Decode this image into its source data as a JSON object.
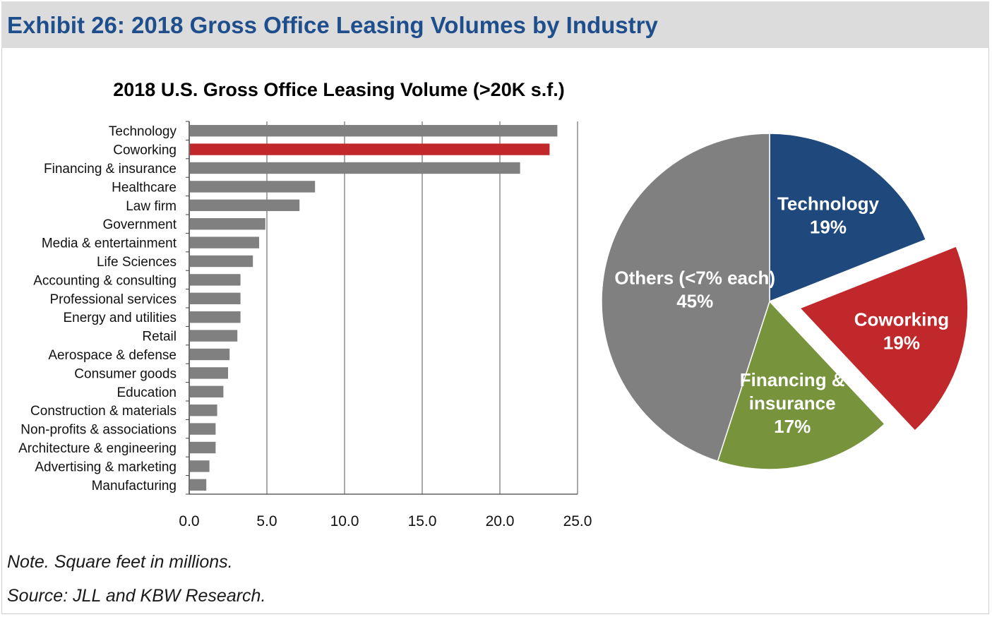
{
  "exhibit": {
    "title": "Exhibit 26: 2018 Gross Office Leasing Volumes by Industry",
    "note": "Note. Square feet in millions.",
    "source": "Source: JLL and KBW Research."
  },
  "colors": {
    "header_bg": "#dcdcdc",
    "header_text": "#1f4e8c",
    "bar_default": "#808080",
    "bar_highlight": "#c0282b",
    "pie_technology": "#1f497d",
    "pie_coworking": "#c0282b",
    "pie_financing": "#77933c",
    "pie_others": "#808080"
  },
  "chart_data": [
    {
      "type": "bar",
      "orientation": "horizontal",
      "title": "2018 U.S. Gross Office Leasing Volume (>20K s.f.)",
      "xlabel": "",
      "ylabel": "",
      "xlim": [
        0,
        25
      ],
      "ticks": [
        "0.0",
        "5.0",
        "10.0",
        "15.0",
        "20.0",
        "25.0"
      ],
      "tick_values": [
        0,
        5,
        10,
        15,
        20,
        25
      ],
      "grid": true,
      "highlight": "Coworking",
      "categories": [
        "Technology",
        "Coworking",
        "Financing & insurance",
        "Healthcare",
        "Law firm",
        "Government",
        "Media & entertainment",
        "Life Sciences",
        "Accounting & consulting",
        "Professional services",
        "Energy and utilities",
        "Retail",
        "Aerospace & defense",
        "Consumer goods",
        "Education",
        "Construction & materials",
        "Non-profits & associations",
        "Architecture & engineering",
        "Advertising & marketing",
        "Manufacturing"
      ],
      "values": [
        23.7,
        23.2,
        21.3,
        8.1,
        7.1,
        4.9,
        4.5,
        4.1,
        3.3,
        3.3,
        3.3,
        3.1,
        2.6,
        2.5,
        2.2,
        1.8,
        1.7,
        1.7,
        1.3,
        1.1
      ]
    },
    {
      "type": "pie",
      "title": "",
      "slices": [
        {
          "name": "Technology",
          "value": 19,
          "label": "Technology",
          "pct": "19%",
          "exploded": false
        },
        {
          "name": "Coworking",
          "value": 19,
          "label": "Coworking",
          "pct": "19%",
          "exploded": true
        },
        {
          "name": "Financing & insurance",
          "value": 17,
          "label": "Financing & insurance",
          "label_lines": [
            "Financing &",
            "insurance"
          ],
          "pct": "17%",
          "exploded": false
        },
        {
          "name": "Others (<7% each)",
          "value": 45,
          "label": "Others (<7% each)",
          "pct": "45%",
          "exploded": false
        }
      ]
    }
  ]
}
